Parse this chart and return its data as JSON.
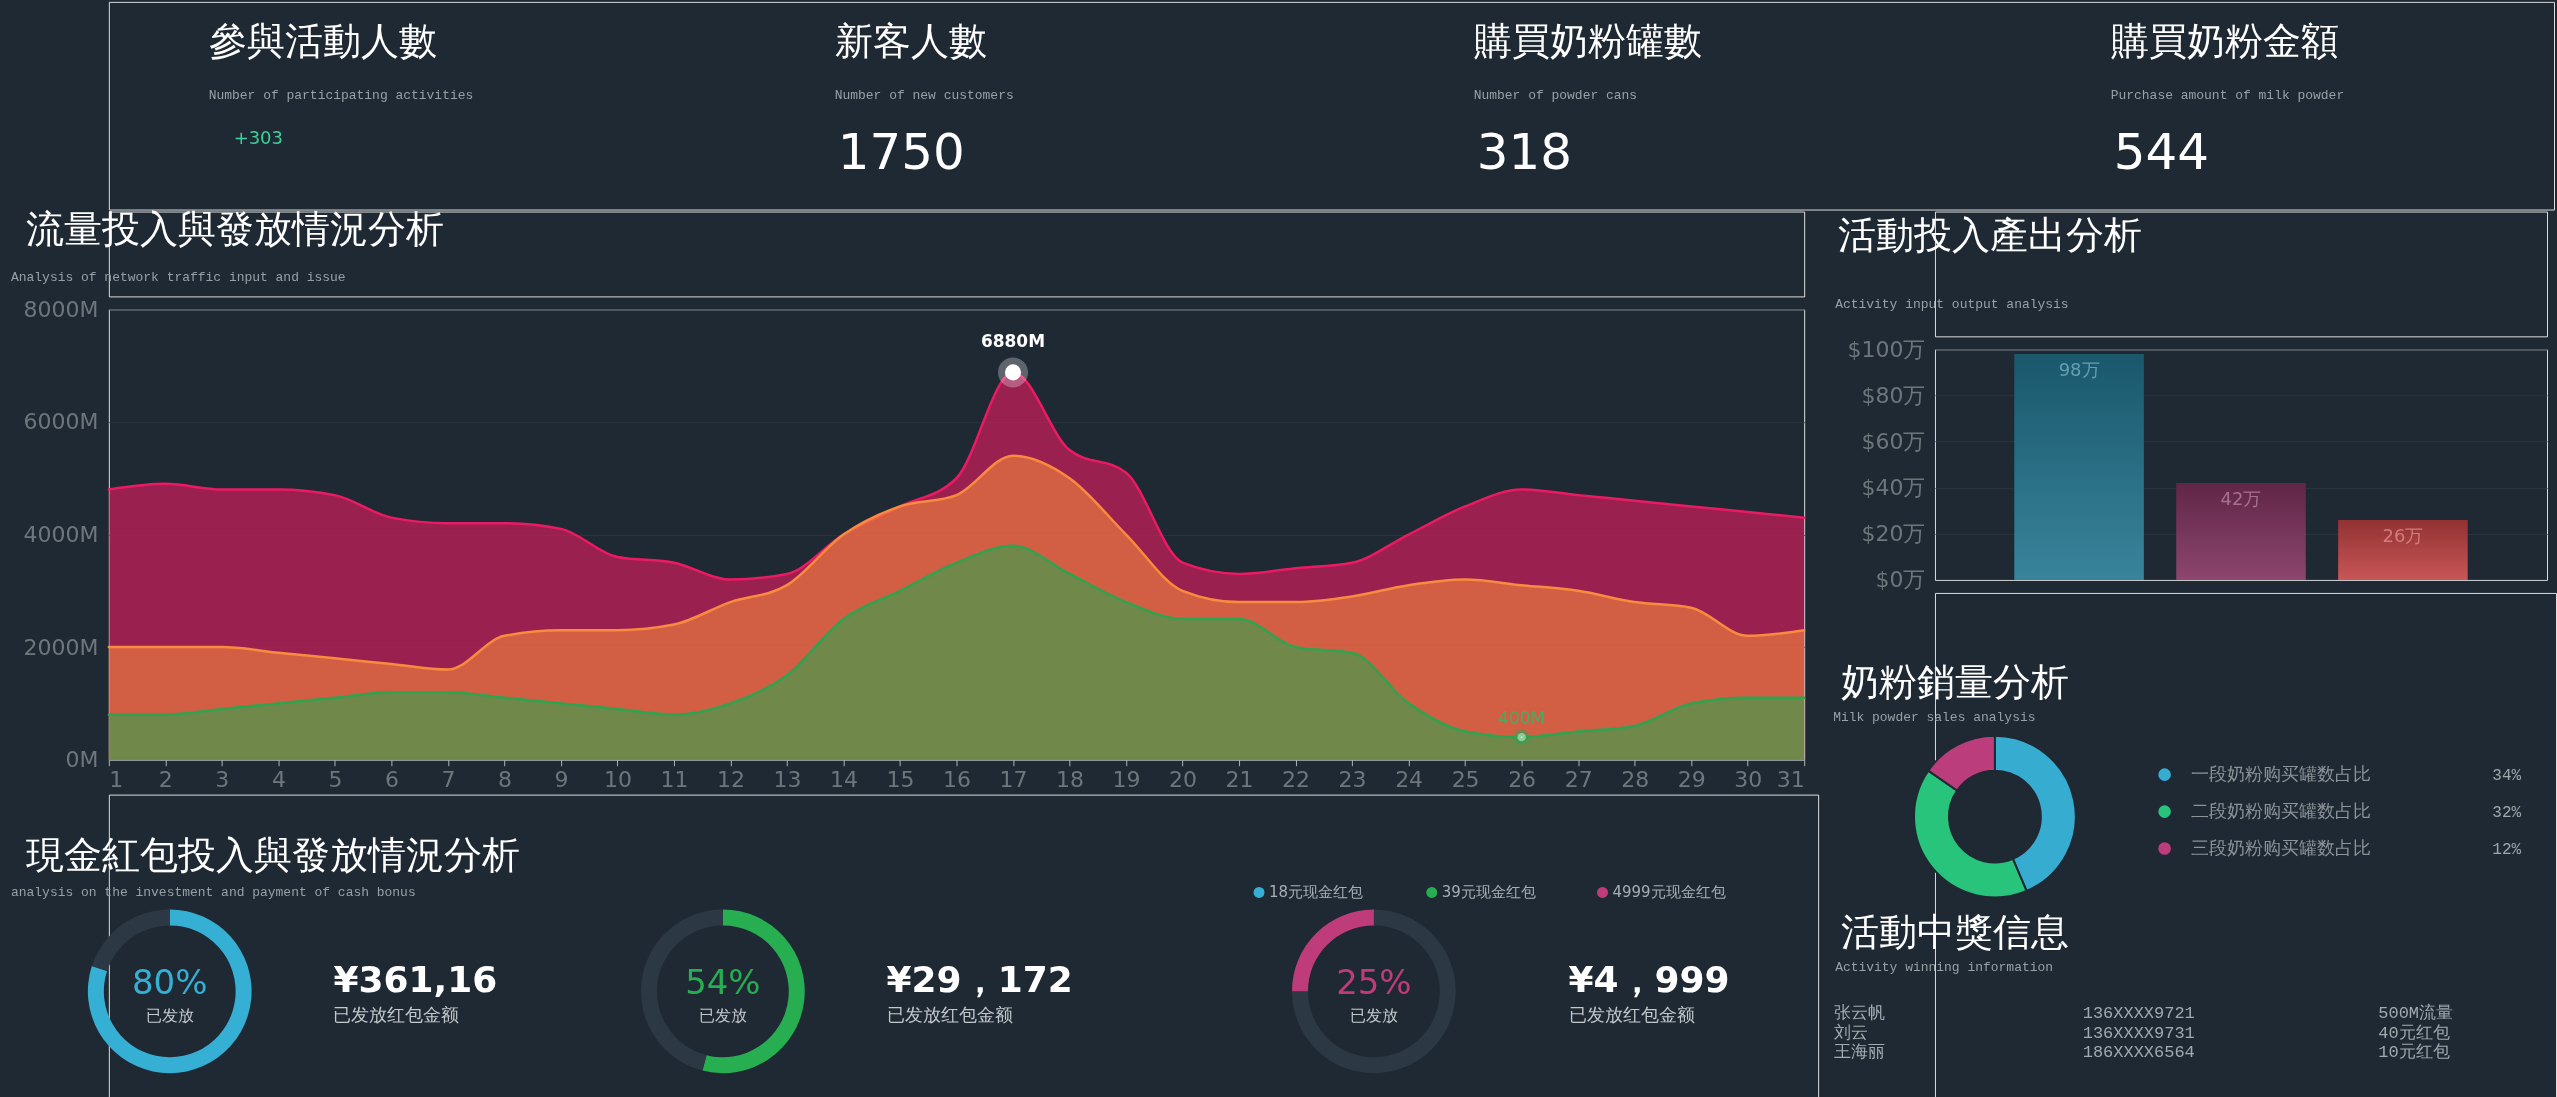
{
  "chart_data": [
    {
      "type": "other",
      "title": "參與活動人數",
      "subtitle": "Number of participating activities",
      "annotations": [
        "+303"
      ]
    },
    {
      "type": "other",
      "title": "新客人數",
      "subtitle": "Number of new customers",
      "annotations": [
        "1750"
      ]
    },
    {
      "type": "other",
      "title": "購買奶粉罐數",
      "subtitle": "Number of powder cans",
      "annotations": [
        "318"
      ]
    },
    {
      "type": "other",
      "title": "購買奶粉金額",
      "subtitle": "Purchase amount of milk powder",
      "annotations": [
        "544"
      ]
    },
    {
      "type": "area",
      "title": "流量投入與發放情況分析",
      "subtitle": "Analysis of network traffic input and issue",
      "x": [
        1,
        2,
        3,
        4,
        5,
        6,
        7,
        8,
        9,
        10,
        11,
        12,
        13,
        14,
        15,
        16,
        17,
        18,
        19,
        20,
        21,
        22,
        23,
        24,
        25,
        26,
        27,
        28,
        29,
        30,
        31
      ],
      "series": [
        {
          "color": "#ec1a62",
          "values": [
            4800,
            4900,
            4800,
            4800,
            4700,
            4300,
            4200,
            4200,
            4100,
            3600,
            3500,
            3200,
            3300,
            4000,
            4500,
            5000,
            6880,
            5500,
            5100,
            3500,
            3300,
            3400,
            3500,
            4000,
            4500,
            4800,
            4700,
            4600,
            4500,
            4400,
            4300
          ]
        },
        {
          "color": "#f98a3e",
          "values": [
            2000,
            2000,
            2000,
            1900,
            1800,
            1700,
            1600,
            2200,
            2300,
            2300,
            2400,
            2800,
            3100,
            4000,
            4500,
            4700,
            5400,
            5000,
            4000,
            3000,
            2800,
            2800,
            2900,
            3100,
            3200,
            3100,
            3000,
            2800,
            2700,
            2200,
            2300
          ]
        },
        {
          "color": "#2ea44f",
          "values": [
            800,
            800,
            900,
            1000,
            1100,
            1200,
            1200,
            1100,
            1000,
            900,
            800,
            1000,
            1500,
            2500,
            3000,
            3500,
            3800,
            3300,
            2800,
            2500,
            2500,
            2000,
            1900,
            1000,
            500,
            400,
            500,
            600,
            1000,
            1100,
            1100
          ]
        }
      ],
      "annotations": [
        {
          "text": "6880M",
          "x": 17,
          "y": 6880
        },
        {
          "text": "400M",
          "x": 26,
          "y": 400
        }
      ],
      "xlim": [
        1,
        31
      ],
      "xticks": [
        1,
        2,
        3,
        4,
        5,
        6,
        7,
        8,
        9,
        10,
        11,
        12,
        13,
        14,
        15,
        16,
        17,
        18,
        19,
        20,
        21,
        22,
        23,
        24,
        25,
        26,
        27,
        28,
        29,
        30,
        31
      ],
      "ylim": [
        0,
        8000
      ],
      "yticks": [
        {
          "value": 0,
          "label": "0M"
        },
        {
          "value": 2000,
          "label": "2000M"
        },
        {
          "value": 4000,
          "label": "4000M"
        },
        {
          "value": 6000,
          "label": "6000M"
        },
        {
          "value": 8000,
          "label": "8000M"
        }
      ],
      "grid": "y"
    },
    {
      "type": "bar",
      "title": "活動投入產出分析",
      "subtitle": "Activity input output analysis",
      "categories": [
        null,
        null,
        null
      ],
      "values": [
        98,
        42,
        26
      ],
      "colors": [
        "#237690",
        "#80325f",
        "#c24344"
      ],
      "value_labels": [
        "98万",
        "42万",
        "26万"
      ],
      "ylim": [
        0,
        100
      ],
      "yticks": [
        {
          "value": 0,
          "label": "$0万"
        },
        {
          "value": 20,
          "label": "$20万"
        },
        {
          "value": 40,
          "label": "$40万"
        },
        {
          "value": 60,
          "label": "$60万"
        },
        {
          "value": 80,
          "label": "$80万"
        },
        {
          "value": 100,
          "label": "$100万"
        }
      ],
      "grid": "y",
      "tick_labels": "y"
    },
    {
      "type": "donut",
      "title": "奶粉銷量分析",
      "subtitle": "Milk powder sales analysis",
      "categories": [
        "一段奶粉购买罐数占比",
        "二段奶粉购买罐数占比",
        "三段奶粉购买罐数占比"
      ],
      "values": [
        34,
        32,
        12
      ],
      "colors": [
        "#36acd0",
        "#28c47c",
        "#bc3d7c"
      ],
      "value_labels": [
        "34%",
        "32%",
        "12%"
      ],
      "legend": "right"
    },
    {
      "type": "donut",
      "title": "現金紅包投入與發放情況分析",
      "subtitle": "analysis on the investment and payment of cash bonus",
      "categories": [
        "18元现金红包",
        null
      ],
      "values": [
        80,
        20
      ],
      "colors": [
        "#35afd3",
        "#2c3843"
      ],
      "value_labels": [
        "80%",
        null
      ],
      "annotations": [
        "已发放",
        "¥361,16",
        "已发放红包金额"
      ],
      "legend": "top right"
    },
    {
      "type": "donut",
      "categories": [
        "39元现金红包",
        null
      ],
      "values": [
        54,
        46
      ],
      "colors": [
        "#27ae50",
        "#2c3843"
      ],
      "value_labels": [
        "54%",
        null
      ],
      "annotations": [
        "已发放",
        "¥29，172",
        "已发放红包金额"
      ],
      "legend": "top right"
    },
    {
      "type": "donut",
      "categories": [
        null,
        "4999元现金红包"
      ],
      "values": [
        75,
        25
      ],
      "colors": [
        "#2c3843",
        "#bf3c7b"
      ],
      "value_labels": [
        null,
        "25%"
      ],
      "annotations": [
        "已发放",
        "¥4，999",
        "已发放红包金额"
      ],
      "legend": "top right"
    },
    {
      "type": "other",
      "title": "活動中獎信息",
      "subtitle": "Activity winning information",
      "annotations": [
        "张云帆",
        "136XXXX9721",
        "500M流量",
        "刘云",
        "136XXXX9731",
        "40元红包",
        "王海丽",
        "186XXXX6564",
        "10元红包"
      ]
    }
  ]
}
